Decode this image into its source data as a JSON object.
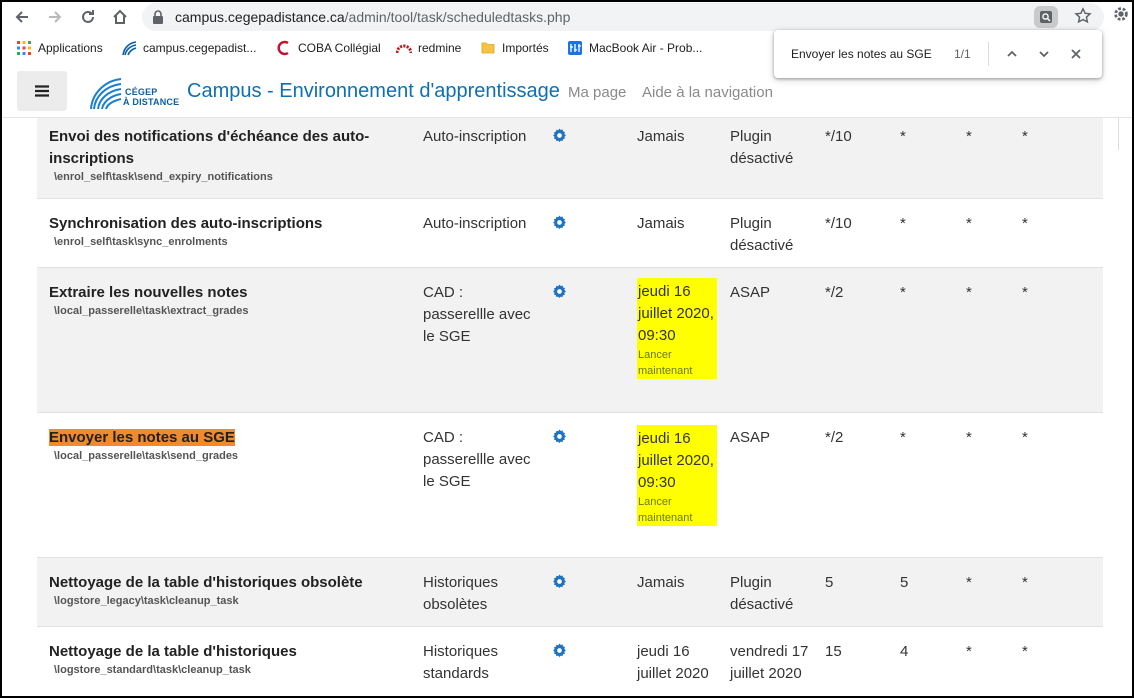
{
  "browser": {
    "url_host": "campus.cegepadistance.ca",
    "url_path": "/admin/tool/task/scheduledtasks.php"
  },
  "bookmarks": [
    {
      "label": "Applications",
      "icon": "apps-grid-icon"
    },
    {
      "label": "campus.cegepadist...",
      "icon": "cegep-logo-icon"
    },
    {
      "label": "COBA Collégial",
      "icon": "coba-icon"
    },
    {
      "label": "redmine",
      "icon": "redmine-icon"
    },
    {
      "label": "Importés",
      "icon": "folder-icon"
    },
    {
      "label": "MacBook Air - Prob...",
      "icon": "macbook-icon"
    }
  ],
  "find": {
    "query": "Envoyer les notes au SGE",
    "count": "1/1"
  },
  "header": {
    "logo_line1": "CÉGEP",
    "logo_line2": "À DISTANCE",
    "site_title": "Campus - Environnement d'apprentissage",
    "links": [
      "Ma page",
      "Aide à la navigation"
    ]
  },
  "colors": {
    "accent": "#0f6fb2",
    "highlight_yellow": "#ffff00",
    "find_match": "#f08a2c"
  },
  "tasks": [
    {
      "name": "Envoi des notifications d'échéance des auto-inscriptions",
      "classname": "\\enrol_self\\task\\send_expiry_notifications",
      "component": "Auto-inscription",
      "last_run": "Jamais",
      "next_run": "Plugin désactivé",
      "minute": "*/10",
      "hour": "*",
      "day": "*",
      "dow": "*"
    },
    {
      "name": "Synchronisation des auto-inscriptions",
      "classname": "\\enrol_self\\task\\sync_enrolments",
      "component": "Auto-inscription",
      "last_run": "Jamais",
      "next_run": "Plugin désactivé",
      "minute": "*/10",
      "hour": "*",
      "day": "*",
      "dow": "*"
    },
    {
      "name": "Extraire les nouvelles notes",
      "classname": "\\local_passerelle\\task\\extract_grades",
      "component": "CAD : passerellle avec le SGE",
      "last_run": "jeudi 16 juillet 2020, 09:30",
      "run_now": "Lancer maintenant",
      "next_run": "ASAP",
      "minute": "*/2",
      "hour": "*",
      "day": "*",
      "dow": "*"
    },
    {
      "name": "Envoyer les notes au SGE",
      "classname": "\\local_passerelle\\task\\send_grades",
      "component": "CAD : passerellle avec le SGE",
      "last_run": "jeudi 16 juillet 2020, 09:30",
      "run_now": "Lancer maintenant",
      "next_run": "ASAP",
      "minute": "*/2",
      "hour": "*",
      "day": "*",
      "dow": "*"
    },
    {
      "name": "Nettoyage de la table d'historiques obsolète",
      "classname": "\\logstore_legacy\\task\\cleanup_task",
      "component": "Historiques obsolètes",
      "last_run": "Jamais",
      "next_run": "Plugin désactivé",
      "minute": "5",
      "hour": "5",
      "day": "*",
      "dow": "*"
    },
    {
      "name": "Nettoyage de la table d'historiques",
      "classname": "\\logstore_standard\\task\\cleanup_task",
      "component": "Historiques standards",
      "last_run": "jeudi 16 juillet 2020",
      "next_run": "vendredi 17 juillet 2020",
      "minute": "15",
      "hour": "4",
      "day": "*",
      "dow": "*"
    }
  ]
}
